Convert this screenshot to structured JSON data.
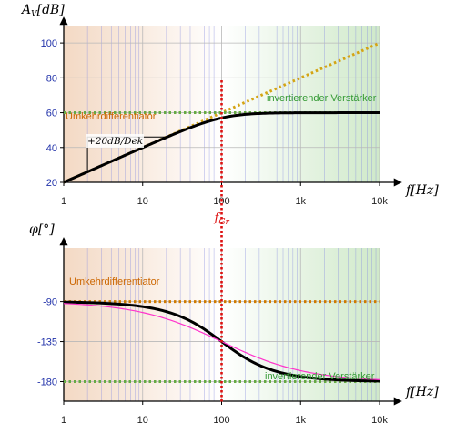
{
  "colors": {
    "grid_minor": "#8a8fe0",
    "grid_major": "#b8b8b8",
    "bg_left": "#f3d9c4",
    "bg_right": "#cfe9c9",
    "curve": "#000000",
    "approx_pink": "#ff33cc",
    "asym_orange": "#d07a00",
    "asym_gold": "#d4a414",
    "asym_green": "#66aa44",
    "fgr_red": "#dd1111",
    "label_orange": "#cc6600",
    "label_green": "#339933",
    "ytick_blue": "#2233aa"
  },
  "chart_data": [
    {
      "type": "line",
      "name": "amplitude",
      "xscale": "log",
      "xlim": [
        1,
        10000
      ],
      "ylim": [
        20,
        110
      ],
      "xticks": [
        1,
        10,
        100,
        1000,
        10000
      ],
      "xticklabels": [
        "1",
        "10",
        "100",
        "1k",
        "10k"
      ],
      "yticks": [
        20,
        40,
        60,
        80,
        100
      ],
      "yticklabels": [
        "20",
        "40",
        "60",
        "80",
        "100"
      ],
      "ylabel_main": "A",
      "ylabel_sub": "V",
      "ylabel_unit": "[dB]",
      "xlabel_main": "f",
      "xlabel_unit": "[Hz]",
      "grid": true,
      "asymptote_low_label": "Umkehrdifferentiator",
      "asymptote_high_label": "invertierender Verstärker",
      "slope_label": "+20dB/Dek",
      "series": [
        {
          "role": "response",
          "K_dB": 60,
          "fc": 100
        },
        {
          "role": "asymptote-rising",
          "x": [
            1,
            10000
          ],
          "y": [
            20,
            100
          ]
        },
        {
          "role": "asymptote-flat",
          "x": [
            1,
            10000
          ],
          "y": [
            60,
            60
          ]
        }
      ]
    },
    {
      "type": "line",
      "name": "phase",
      "xscale": "log",
      "xlim": [
        1,
        10000
      ],
      "ylim": [
        -202,
        -30
      ],
      "xticks": [
        1,
        10,
        100,
        1000,
        10000
      ],
      "xticklabels": [
        "1",
        "10",
        "100",
        "1k",
        "10k"
      ],
      "yticks": [
        -90,
        -135,
        -180
      ],
      "yticklabels": [
        "-90",
        "-135",
        "-180"
      ],
      "ylabel_main": "φ",
      "ylabel_unit": "[°]",
      "xlabel_main": "f",
      "xlabel_unit": "[Hz]",
      "grid": true,
      "asymptote_low_label": "Umkehrdifferentiator",
      "asymptote_high_label": "invertierender Verstärker",
      "series": [
        {
          "role": "response",
          "fc": 100,
          "start_deg": -90,
          "end_deg": -180
        },
        {
          "role": "approximation",
          "fc": 100
        },
        {
          "role": "asymptote-low",
          "x": [
            1,
            10000
          ],
          "y": [
            -90,
            -90
          ]
        },
        {
          "role": "asymptote-high",
          "x": [
            1,
            10000
          ],
          "y": [
            -180,
            -180
          ]
        }
      ]
    }
  ],
  "cutoff": {
    "x": 100,
    "label_main": "f",
    "label_sub": "Gr"
  }
}
